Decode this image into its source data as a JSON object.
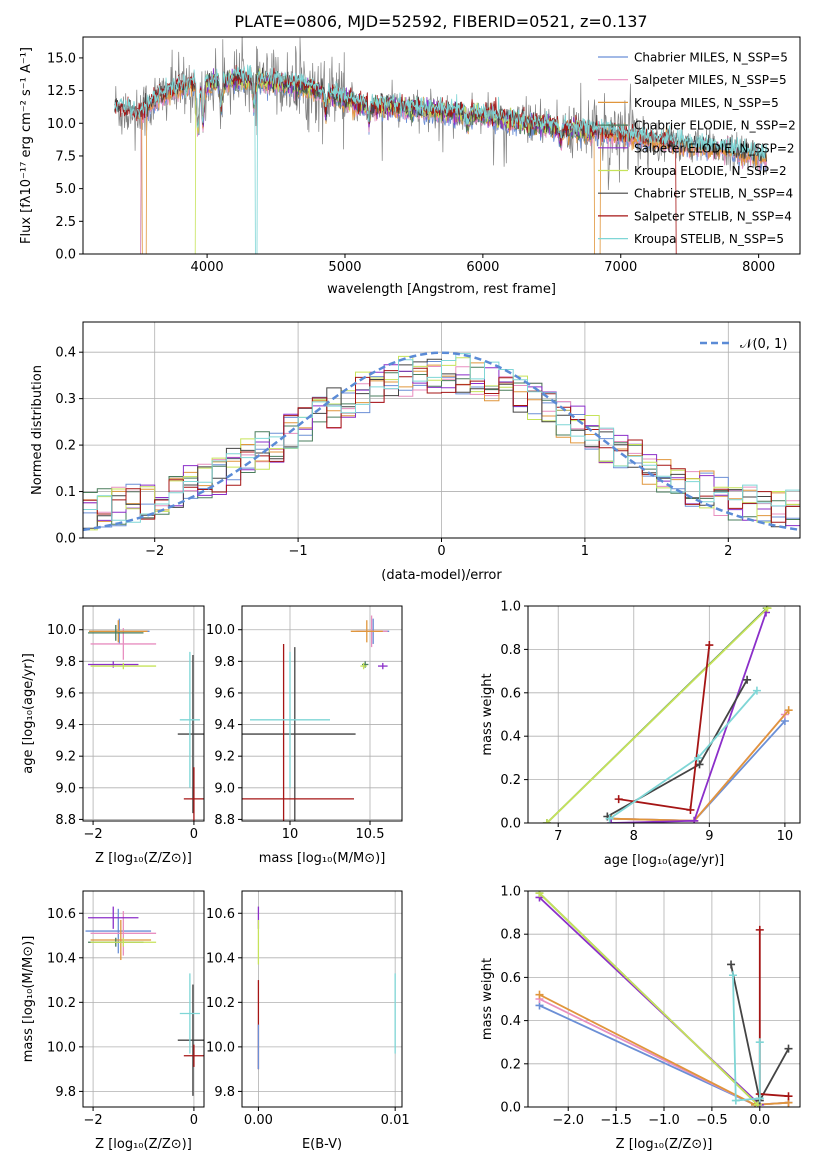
{
  "figure": {
    "title": "PLATE=0806, MJD=52592, FIBERID=0521, z=0.137"
  },
  "series_colors": {
    "Chabrier MILES": "#6b8fd6",
    "Salpeter MILES": "#e88fc0",
    "Kroupa MILES": "#e0963c",
    "Chabrier ELODIE": "#4a7d5c",
    "Salpeter ELODIE": "#8b2fc9",
    "Kroupa ELODIE": "#c6e35a",
    "Chabrier STELIB": "#444444",
    "Salpeter STELIB": "#a51515",
    "Kroupa STELIB": "#7fd6d6"
  },
  "chart_data": [
    {
      "id": "spectrum",
      "type": "line",
      "title": "PLATE=0806, MJD=52592, FIBERID=0521, z=0.137",
      "xlabel": "wavelength [Angstrom, rest frame]",
      "ylabel": "Flux [fλ10⁻¹⁷ erg cm⁻² s⁻¹ A⁻¹]",
      "xlim": [
        3100,
        8300
      ],
      "ylim": [
        0,
        16.6
      ],
      "xticks": [
        4000,
        5000,
        6000,
        7000,
        8000
      ],
      "yticks": [
        0.0,
        2.5,
        5.0,
        7.5,
        10.0,
        12.5,
        15.0
      ],
      "legend_position": "top-right",
      "legend": [
        "Chabrier MILES, N_SSP=5",
        "Salpeter MILES, N_SSP=5",
        "Kroupa MILES, N_SSP=5",
        "Chabrier ELODIE, N_SSP=2",
        "Salpeter ELODIE, N_SSP=2",
        "Kroupa ELODIE, N_SSP=2",
        "Chabrier STELIB, N_SSP=4",
        "Salpeter STELIB, N_SSP=4",
        "Kroupa STELIB, N_SSP=5"
      ],
      "continuum": {
        "x": [
          3330,
          3500,
          3700,
          3900,
          4100,
          4300,
          4500,
          4700,
          4900,
          5100,
          5400,
          5700,
          6000,
          6300,
          6600,
          6900,
          7200,
          7500,
          7800,
          8050
        ],
        "y": [
          11.2,
          10.7,
          12.3,
          13.0,
          13.2,
          13.4,
          13.1,
          12.8,
          12.2,
          11.4,
          11.2,
          10.9,
          10.6,
          10.0,
          9.6,
          9.3,
          8.8,
          8.3,
          7.9,
          7.4
        ]
      }
    },
    {
      "id": "residuals",
      "type": "step",
      "xlabel": "(data-model)/error",
      "ylabel": "Normed distribution",
      "xlim": [
        -2.5,
        2.5
      ],
      "ylim": [
        0,
        0.465
      ],
      "xticks": [
        -2,
        -1,
        0,
        1,
        2
      ],
      "yticks": [
        0.0,
        0.1,
        0.2,
        0.3,
        0.4
      ],
      "gaussian_label": "𝒩(0, 1)",
      "legend_position": "top-right",
      "bin_width": 0.1
    },
    {
      "id": "age_vs_Z",
      "type": "errorbar",
      "xlabel": "Z [log₁₀(Z/Z⊙)]",
      "ylabel": "age  [log₁₀(age/yr)]",
      "xlim": [
        -2.2,
        0.2
      ],
      "ylim": [
        8.79,
        10.15
      ],
      "xticks": [
        -2,
        0
      ],
      "yticks": [
        8.8,
        9.0,
        9.2,
        9.4,
        9.6,
        9.8,
        10.0
      ],
      "points": [
        {
          "series": "Chabrier MILES",
          "x": -1.48,
          "xerr": 0.6,
          "y": 9.99,
          "yerr": 0.08
        },
        {
          "series": "Salpeter MILES",
          "x": -1.4,
          "xerr": 0.65,
          "y": 9.91,
          "yerr": 0.1
        },
        {
          "series": "Kroupa MILES",
          "x": -1.5,
          "xerr": 0.58,
          "y": 9.99,
          "yerr": 0.07
        },
        {
          "series": "Chabrier ELODIE",
          "x": -1.55,
          "xerr": 0.55,
          "y": 9.98,
          "yerr": 0.05
        },
        {
          "series": "Salpeter ELODIE",
          "x": -1.6,
          "xerr": 0.5,
          "y": 9.78,
          "yerr": 0.02
        },
        {
          "series": "Kroupa ELODIE",
          "x": -1.4,
          "xerr": 0.65,
          "y": 9.77,
          "yerr": 0.02
        },
        {
          "series": "Chabrier STELIB",
          "x": -0.02,
          "xerr": 0.3,
          "y": 9.34,
          "yerr": 0.5
        },
        {
          "series": "Salpeter STELIB",
          "x": 0.0,
          "xerr": 0.2,
          "y": 8.93,
          "yerr": 0.2
        },
        {
          "series": "Kroupa STELIB",
          "x": -0.08,
          "xerr": 0.2,
          "y": 9.43,
          "yerr": 0.43
        }
      ]
    },
    {
      "id": "age_vs_mass",
      "type": "errorbar",
      "xlabel": "mass [log₁₀(M/M⊙)]",
      "xlim": [
        9.7,
        10.7
      ],
      "ylim": [
        8.79,
        10.15
      ],
      "xticks": [
        10.0,
        10.5
      ],
      "yticks": [
        8.8,
        9.0,
        9.2,
        9.4,
        9.6,
        9.8,
        10.0
      ],
      "points": [
        {
          "series": "Chabrier MILES",
          "x": 10.52,
          "xerr": 0.1,
          "y": 9.99,
          "yerr": 0.08
        },
        {
          "series": "Salpeter MILES",
          "x": 10.51,
          "xerr": 0.1,
          "y": 9.99,
          "yerr": 0.1
        },
        {
          "series": "Kroupa MILES",
          "x": 10.48,
          "xerr": 0.1,
          "y": 9.99,
          "yerr": 0.07
        },
        {
          "series": "Chabrier ELODIE",
          "x": 10.47,
          "xerr": 0.02,
          "y": 9.78,
          "yerr": 0.02
        },
        {
          "series": "Salpeter ELODIE",
          "x": 10.58,
          "xerr": 0.03,
          "y": 9.77,
          "yerr": 0.02
        },
        {
          "series": "Kroupa ELODIE",
          "x": 10.46,
          "xerr": 0.02,
          "y": 9.77,
          "yerr": 0.02
        },
        {
          "series": "Chabrier STELIB",
          "x": 10.03,
          "xerr": 0.38,
          "y": 9.34,
          "yerr": 0.55
        },
        {
          "series": "Salpeter STELIB",
          "x": 9.96,
          "xerr": 0.44,
          "y": 8.93,
          "yerr": 0.98
        },
        {
          "series": "Kroupa STELIB",
          "x": 10.0,
          "xerr": 0.25,
          "y": 9.43,
          "yerr": 0.43
        }
      ]
    },
    {
      "id": "weight_vs_age",
      "type": "line",
      "xlabel": "age  [log₁₀(age/yr)]",
      "ylabel": "mass weight",
      "xlim": [
        6.6,
        10.2
      ],
      "ylim": [
        0,
        1
      ],
      "xticks": [
        7,
        8,
        9,
        10
      ],
      "yticks": [
        0.0,
        0.2,
        0.4,
        0.6,
        0.8,
        1.0
      ],
      "series": [
        {
          "name": "Chabrier MILES",
          "x": [
            7.7,
            8.8,
            10.0
          ],
          "y": [
            0.02,
            0.01,
            0.47
          ]
        },
        {
          "name": "Salpeter MILES",
          "x": [
            7.7,
            8.8,
            10.0
          ],
          "y": [
            0.02,
            0.01,
            0.5
          ]
        },
        {
          "name": "Kroupa MILES",
          "x": [
            7.7,
            8.8,
            10.05
          ],
          "y": [
            0.02,
            0.01,
            0.52
          ]
        },
        {
          "name": "Chabrier ELODIE",
          "x": [
            6.85,
            9.76
          ],
          "y": [
            0.0,
            0.99
          ]
        },
        {
          "name": "Salpeter ELODIE",
          "x": [
            7.7,
            8.8,
            9.75
          ],
          "y": [
            0.0,
            0.01,
            0.97
          ]
        },
        {
          "name": "Kroupa ELODIE",
          "x": [
            6.85,
            9.77
          ],
          "y": [
            0.0,
            0.99
          ]
        },
        {
          "name": "Chabrier STELIB",
          "x": [
            7.65,
            8.87,
            9.5
          ],
          "y": [
            0.03,
            0.27,
            0.66
          ]
        },
        {
          "name": "Salpeter STELIB",
          "x": [
            7.8,
            8.75,
            9.0
          ],
          "y": [
            0.11,
            0.06,
            0.82
          ]
        },
        {
          "name": "Kroupa STELIB",
          "x": [
            7.68,
            8.85,
            9.63
          ],
          "y": [
            0.02,
            0.3,
            0.61
          ]
        }
      ]
    },
    {
      "id": "mass_vs_Z",
      "type": "errorbar",
      "xlabel": "Z [log₁₀(Z/Z⊙)]",
      "ylabel": "mass [log₁₀(M/M⊙)]",
      "xlim": [
        -2.2,
        0.2
      ],
      "ylim": [
        9.73,
        10.7
      ],
      "xticks": [
        -2,
        0
      ],
      "yticks": [
        9.8,
        10.0,
        10.2,
        10.4,
        10.6
      ],
      "points": [
        {
          "series": "Chabrier MILES",
          "x": -1.5,
          "xerr": 0.65,
          "y": 10.52,
          "yerr": 0.1
        },
        {
          "series": "Salpeter MILES",
          "x": -1.4,
          "xerr": 0.65,
          "y": 10.51,
          "yerr": 0.1
        },
        {
          "series": "Kroupa MILES",
          "x": -1.45,
          "xerr": 0.6,
          "y": 10.48,
          "yerr": 0.09
        },
        {
          "series": "Chabrier ELODIE",
          "x": -1.55,
          "xerr": 0.55,
          "y": 10.47,
          "yerr": 0.02
        },
        {
          "series": "Salpeter ELODIE",
          "x": -1.6,
          "xerr": 0.5,
          "y": 10.58,
          "yerr": 0.05
        },
        {
          "series": "Kroupa ELODIE",
          "x": -1.4,
          "xerr": 0.65,
          "y": 10.47,
          "yerr": 0.02
        },
        {
          "series": "Chabrier STELIB",
          "x": -0.02,
          "xerr": 0.3,
          "y": 10.03,
          "yerr": 0.25
        },
        {
          "series": "Salpeter STELIB",
          "x": 0.0,
          "xerr": 0.2,
          "y": 9.96,
          "yerr": 0.05
        },
        {
          "series": "Kroupa STELIB",
          "x": -0.08,
          "xerr": 0.2,
          "y": 10.15,
          "yerr": 0.18
        }
      ]
    },
    {
      "id": "mass_vs_EBV",
      "type": "errorbar",
      "xlabel": "E(B-V)",
      "xlim": [
        -0.0012,
        0.0105
      ],
      "ylim": [
        9.73,
        10.7
      ],
      "xticks": [
        0.0,
        0.01
      ],
      "xtick_labels": [
        "0.00",
        "0.01"
      ],
      "yticks": [
        9.8,
        10.0,
        10.2,
        10.4,
        10.6
      ],
      "points": [
        {
          "series": "Salpeter ELODIE",
          "x": 0.0,
          "xerr": 0.0,
          "y": 10.58,
          "yerr": 0.05
        },
        {
          "series": "Kroupa ELODIE",
          "x": 0.0,
          "xerr": 0.0,
          "y": 10.47,
          "yerr": 0.1
        },
        {
          "series": "Salpeter STELIB",
          "x": 0.0,
          "xerr": 0.0,
          "y": 10.1,
          "yerr": 0.2
        },
        {
          "series": "Chabrier MILES",
          "x": 0.0,
          "xerr": 0.0,
          "y": 10.0,
          "yerr": 0.1
        },
        {
          "series": "Kroupa STELIB",
          "x": 0.01,
          "xerr": 0.0,
          "y": 10.15,
          "yerr": 0.18
        }
      ]
    },
    {
      "id": "weight_vs_Z",
      "type": "line",
      "xlabel": "Z [log₁₀(Z/Z⊙)]",
      "ylabel": "mass weight",
      "xlim": [
        -2.42,
        0.42
      ],
      "ylim": [
        0,
        1
      ],
      "xticks": [
        -2.0,
        -1.5,
        -1.0,
        -0.5,
        0.0
      ],
      "xtick_labels": [
        "−2.0",
        "−1.5",
        "−1.0",
        "−0.5",
        "0.0"
      ],
      "yticks": [
        0.0,
        0.2,
        0.4,
        0.6,
        0.8,
        1.0
      ],
      "series": [
        {
          "name": "Chabrier MILES",
          "x": [
            -2.3,
            -0.05,
            0.3
          ],
          "y": [
            0.47,
            0.01,
            0.02
          ]
        },
        {
          "name": "Salpeter MILES",
          "x": [
            -2.3,
            -0.05,
            0.3
          ],
          "y": [
            0.5,
            0.01,
            0.02
          ]
        },
        {
          "name": "Kroupa MILES",
          "x": [
            -2.3,
            -0.05,
            0.3
          ],
          "y": [
            0.52,
            0.01,
            0.02
          ]
        },
        {
          "name": "Chabrier ELODIE",
          "x": [
            -2.3,
            -0.02
          ],
          "y": [
            0.99,
            0.01
          ]
        },
        {
          "name": "Salpeter ELODIE",
          "x": [
            -2.3,
            0.0
          ],
          "y": [
            0.97,
            0.01
          ]
        },
        {
          "name": "Kroupa ELODIE",
          "x": [
            -2.3,
            -0.02
          ],
          "y": [
            0.99,
            0.01
          ]
        },
        {
          "name": "Chabrier STELIB",
          "x": [
            -0.3,
            0.0,
            0.3
          ],
          "y": [
            0.66,
            0.03,
            0.27
          ]
        },
        {
          "name": "Salpeter STELIB",
          "x": [
            0.0,
            0.0,
            0.3
          ],
          "y": [
            0.82,
            0.06,
            0.05
          ]
        },
        {
          "name": "Kroupa STELIB",
          "x": [
            -0.28,
            -0.25,
            0.0,
            0.0
          ],
          "y": [
            0.61,
            0.03,
            0.04,
            0.3
          ]
        }
      ]
    }
  ]
}
